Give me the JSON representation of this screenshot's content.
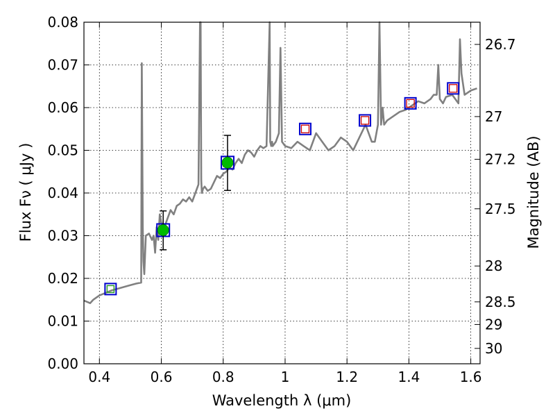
{
  "chart_data": {
    "type": "line",
    "title": "",
    "xlabel": "Wavelength  λ (μm)",
    "ylabel": "Flux  Fν  ( μJy )",
    "y2label": "Magnitude (AB)",
    "xlim": [
      0.35,
      1.63
    ],
    "ylim": [
      0.0,
      0.08
    ],
    "grid": true,
    "x_ticks": [
      0.4,
      0.6,
      0.8,
      1.0,
      1.2,
      1.4,
      1.6
    ],
    "x_tick_labels": [
      "0.4",
      "0.6",
      "0.8",
      "1",
      "1.2",
      "1.4",
      "1.6"
    ],
    "y_ticks": [
      0.0,
      0.01,
      0.02,
      0.03,
      0.04,
      0.05,
      0.06,
      0.07,
      0.08
    ],
    "y_tick_labels": [
      "0.00",
      "0.01",
      "0.02",
      "0.03",
      "0.04",
      "0.05",
      "0.06",
      "0.07",
      "0.08"
    ],
    "mag_ticks": [
      {
        "label": "26.7",
        "flux": 0.0748
      },
      {
        "label": "27",
        "flux": 0.0579
      },
      {
        "label": "27.2",
        "flux": 0.0479
      },
      {
        "label": "27.5",
        "flux": 0.0363
      },
      {
        "label": "28",
        "flux": 0.0229
      },
      {
        "label": "28.5",
        "flux": 0.0145
      },
      {
        "label": "29",
        "flux": 0.0092
      },
      {
        "label": "30",
        "flux": 0.0036
      }
    ],
    "colors": {
      "spectrum": "#808080",
      "model_box": "#0000cc",
      "upper_limit": "#cc0000",
      "detection": "#00bb00",
      "green_box": "#2e9e2e",
      "errorbar": "#000000"
    },
    "series": [
      {
        "name": "model spectrum",
        "x": [
          0.35,
          0.36,
          0.37,
          0.38,
          0.39,
          0.4,
          0.42,
          0.44,
          0.46,
          0.48,
          0.5,
          0.52,
          0.535,
          0.537,
          0.54,
          0.542,
          0.545,
          0.55,
          0.56,
          0.57,
          0.575,
          0.58,
          0.585,
          0.59,
          0.595,
          0.6,
          0.61,
          0.62,
          0.63,
          0.64,
          0.65,
          0.66,
          0.67,
          0.68,
          0.69,
          0.7,
          0.71,
          0.72,
          0.725,
          0.727,
          0.729,
          0.731,
          0.735,
          0.74,
          0.75,
          0.76,
          0.77,
          0.78,
          0.79,
          0.8,
          0.81,
          0.82,
          0.83,
          0.84,
          0.85,
          0.86,
          0.87,
          0.88,
          0.89,
          0.9,
          0.91,
          0.92,
          0.93,
          0.94,
          0.95,
          0.952,
          0.955,
          0.958,
          0.96,
          0.97,
          0.98,
          0.985,
          0.99,
          1.0,
          1.02,
          1.04,
          1.06,
          1.08,
          1.1,
          1.12,
          1.14,
          1.16,
          1.18,
          1.2,
          1.22,
          1.24,
          1.26,
          1.28,
          1.29,
          1.3,
          1.305,
          1.31,
          1.315,
          1.32,
          1.33,
          1.35,
          1.37,
          1.39,
          1.41,
          1.43,
          1.45,
          1.47,
          1.48,
          1.49,
          1.495,
          1.5,
          1.51,
          1.52,
          1.54,
          1.56,
          1.565,
          1.57,
          1.58,
          1.6,
          1.62
        ],
        "values": [
          0.0148,
          0.0145,
          0.0142,
          0.015,
          0.0155,
          0.016,
          0.0166,
          0.0172,
          0.0176,
          0.018,
          0.0184,
          0.0188,
          0.019,
          0.0704,
          0.032,
          0.024,
          0.021,
          0.03,
          0.0305,
          0.029,
          0.03,
          0.026,
          0.032,
          0.029,
          0.035,
          0.033,
          0.032,
          0.034,
          0.036,
          0.035,
          0.037,
          0.0375,
          0.0385,
          0.038,
          0.039,
          0.038,
          0.04,
          0.042,
          0.08,
          0.08,
          0.043,
          0.04,
          0.041,
          0.0415,
          0.0405,
          0.041,
          0.0425,
          0.044,
          0.0435,
          0.0445,
          0.045,
          0.046,
          0.0455,
          0.047,
          0.048,
          0.047,
          0.049,
          0.05,
          0.0495,
          0.0485,
          0.05,
          0.051,
          0.0505,
          0.051,
          0.08,
          0.052,
          0.051,
          0.052,
          0.051,
          0.052,
          0.054,
          0.074,
          0.052,
          0.051,
          0.0505,
          0.052,
          0.051,
          0.05,
          0.054,
          0.052,
          0.05,
          0.051,
          0.053,
          0.052,
          0.05,
          0.053,
          0.056,
          0.052,
          0.052,
          0.056,
          0.08,
          0.056,
          0.06,
          0.056,
          0.057,
          0.058,
          0.059,
          0.0595,
          0.0605,
          0.0615,
          0.061,
          0.062,
          0.063,
          0.063,
          0.07,
          0.062,
          0.061,
          0.0625,
          0.063,
          0.061,
          0.076,
          0.068,
          0.063,
          0.064,
          0.0645
        ]
      }
    ],
    "points": [
      {
        "name": "green-box-0.44",
        "x": 0.436,
        "y": 0.0175,
        "marker": "box-green"
      },
      {
        "name": "detection-0.61",
        "x": 0.606,
        "y": 0.0313,
        "marker": "circle-green",
        "yerr": [
          0.0267,
          0.0358
        ]
      },
      {
        "name": "detection-0.81",
        "x": 0.814,
        "y": 0.0471,
        "marker": "circle-green",
        "yerr": [
          0.0406,
          0.0535
        ]
      },
      {
        "name": "upper-limit-1.06",
        "x": 1.065,
        "y": 0.055,
        "marker": "box-open"
      },
      {
        "name": "upper-limit-1.26",
        "x": 1.258,
        "y": 0.057,
        "marker": "box-open"
      },
      {
        "name": "upper-limit-1.40",
        "x": 1.405,
        "y": 0.061,
        "marker": "box-open"
      },
      {
        "name": "upper-limit-1.54",
        "x": 1.543,
        "y": 0.0645,
        "marker": "box-open"
      }
    ]
  }
}
